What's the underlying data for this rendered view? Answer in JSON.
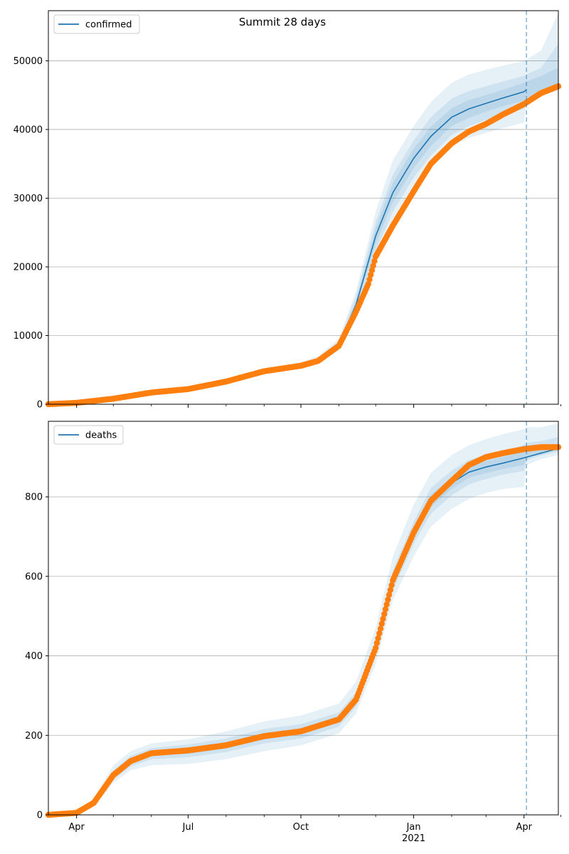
{
  "figure": {
    "title": "Summit 28 days"
  },
  "colors": {
    "model_line": "#1f77b4",
    "observed_points": "#ff7f0e",
    "band": "#1f77b4",
    "grid": "#b0b0b0",
    "axes": "#000000"
  },
  "x_axis": {
    "ticks": [
      {
        "label": "Apr",
        "date": "2020-04-01"
      },
      {
        "label": "Jul",
        "date": "2020-07-01"
      },
      {
        "label": "Oct",
        "date": "2020-10-01"
      },
      {
        "label": "Jan",
        "date": "2021-01-01"
      },
      {
        "label": "Apr",
        "date": "2021-04-01"
      }
    ],
    "year_label": "2021",
    "minor_tick_dates": [
      "2020-05-01",
      "2020-06-01",
      "2020-08-01",
      "2020-09-01",
      "2020-11-01",
      "2020-12-01",
      "2021-02-01",
      "2021-03-01",
      "2021-05-01"
    ],
    "range": [
      "2020-03-09",
      "2021-04-29"
    ],
    "forecast_start": "2021-04-03"
  },
  "chart_data": [
    {
      "type": "line",
      "legend": {
        "label": "confirmed",
        "position": "top-left"
      },
      "ylim": [
        0,
        57300
      ],
      "grid": "horizontal",
      "yticks": [
        {
          "label": "0",
          "value": 0
        },
        {
          "label": "10000",
          "value": 10000
        },
        {
          "label": "20000",
          "value": 20000
        },
        {
          "label": "30000",
          "value": 30000
        },
        {
          "label": "40000",
          "value": 40000
        },
        {
          "label": "50000",
          "value": 50000
        }
      ],
      "model": {
        "dates": [
          "2020-03-09",
          "2020-04-01",
          "2020-05-01",
          "2020-06-01",
          "2020-07-01",
          "2020-08-01",
          "2020-09-01",
          "2020-10-01",
          "2020-10-15",
          "2020-11-01",
          "2020-11-15",
          "2020-12-01",
          "2020-12-15",
          "2021-01-01",
          "2021-01-15",
          "2021-02-01",
          "2021-02-15",
          "2021-03-01",
          "2021-03-15",
          "2021-04-01",
          "2021-04-03"
        ],
        "values": [
          0,
          300,
          900,
          1700,
          2200,
          3300,
          4800,
          5600,
          6400,
          8700,
          14500,
          24500,
          30800,
          35800,
          39000,
          41800,
          43000,
          43800,
          44600,
          45500,
          45800
        ]
      },
      "observed": {
        "dates": [
          "2020-03-09",
          "2020-04-01",
          "2020-05-01",
          "2020-06-01",
          "2020-07-01",
          "2020-08-01",
          "2020-09-01",
          "2020-10-01",
          "2020-10-15",
          "2020-11-01",
          "2020-11-15",
          "2020-11-25",
          "2020-12-01",
          "2020-12-15",
          "2021-01-01",
          "2021-01-15",
          "2021-02-01",
          "2021-02-15",
          "2021-03-01",
          "2021-03-15",
          "2021-04-01",
          "2021-04-15",
          "2021-04-29"
        ],
        "values": [
          0,
          200,
          800,
          1700,
          2200,
          3300,
          4800,
          5600,
          6300,
          8500,
          13500,
          17500,
          21500,
          26000,
          31000,
          35000,
          38000,
          39700,
          40800,
          42200,
          43700,
          45300,
          46300
        ]
      },
      "bands": [
        {
          "dates": [
            "2020-03-09",
            "2020-04-01",
            "2020-05-01",
            "2020-06-01",
            "2020-07-01",
            "2020-08-01",
            "2020-09-01",
            "2020-10-01",
            "2020-10-15",
            "2020-11-01",
            "2020-11-15",
            "2020-12-01",
            "2020-12-15",
            "2021-01-01",
            "2021-01-15",
            "2021-02-01",
            "2021-02-15",
            "2021-03-01",
            "2021-03-15",
            "2021-04-01",
            "2021-04-03",
            "2021-04-15",
            "2021-04-29"
          ],
          "lower": [
            0,
            250,
            800,
            1500,
            2000,
            3000,
            4400,
            5200,
            5900,
            7900,
            12500,
            21000,
            26500,
            31500,
            34500,
            37500,
            38800,
            39500,
            40200,
            41000,
            44200,
            45100,
            45600
          ],
          "upper": [
            0,
            350,
            1000,
            1900,
            2450,
            3600,
            5200,
            6100,
            7000,
            9500,
            16500,
            28000,
            35500,
            40500,
            44000,
            46800,
            48000,
            48700,
            49300,
            50000,
            50200,
            51500,
            57000
          ]
        },
        {
          "dates": [
            "2020-03-09",
            "2020-04-01",
            "2020-05-01",
            "2020-06-01",
            "2020-07-01",
            "2020-08-01",
            "2020-09-01",
            "2020-10-01",
            "2020-10-15",
            "2020-11-01",
            "2020-11-15",
            "2020-12-01",
            "2020-12-15",
            "2021-01-01",
            "2021-01-15",
            "2021-02-01",
            "2021-02-15",
            "2021-03-01",
            "2021-03-15",
            "2021-04-01",
            "2021-04-03",
            "2021-04-15",
            "2021-04-29"
          ],
          "lower": [
            0,
            260,
            830,
            1580,
            2080,
            3120,
            4550,
            5350,
            6100,
            8200,
            13300,
            22300,
            28000,
            33000,
            36200,
            39200,
            40500,
            41400,
            42200,
            43000,
            44400,
            45300,
            46000
          ],
          "upper": [
            0,
            340,
            970,
            1820,
            2350,
            3480,
            5050,
            5900,
            6750,
            9200,
            15700,
            26500,
            33400,
            38400,
            41800,
            44500,
            45600,
            46300,
            47000,
            47800,
            48000,
            49000,
            52500
          ]
        },
        {
          "dates": [
            "2020-03-09",
            "2020-04-01",
            "2020-05-01",
            "2020-06-01",
            "2020-07-01",
            "2020-08-01",
            "2020-09-01",
            "2020-10-01",
            "2020-10-15",
            "2020-11-01",
            "2020-11-15",
            "2020-12-01",
            "2020-12-15",
            "2021-01-01",
            "2021-01-15",
            "2021-02-01",
            "2021-02-15",
            "2021-03-01",
            "2021-03-15",
            "2021-04-01",
            "2021-04-03",
            "2021-04-15",
            "2021-04-29"
          ],
          "lower": [
            0,
            280,
            860,
            1640,
            2140,
            3200,
            4680,
            5470,
            6250,
            8450,
            14000,
            23400,
            29400,
            34400,
            37600,
            40500,
            41700,
            42600,
            43400,
            44200,
            44600,
            45500,
            46300
          ],
          "upper": [
            0,
            320,
            940,
            1760,
            2260,
            3400,
            4920,
            5730,
            6550,
            8950,
            15000,
            25600,
            32200,
            37200,
            40400,
            43100,
            44300,
            45000,
            45800,
            46800,
            47000,
            47800,
            49000
          ]
        }
      ]
    },
    {
      "type": "line",
      "legend": {
        "label": "deaths",
        "position": "top-left"
      },
      "ylim": [
        0,
        990
      ],
      "grid": "horizontal",
      "yticks": [
        {
          "label": "0",
          "value": 0
        },
        {
          "label": "200",
          "value": 200
        },
        {
          "label": "400",
          "value": 400
        },
        {
          "label": "600",
          "value": 600
        },
        {
          "label": "800",
          "value": 800
        }
      ],
      "model": {
        "dates": [
          "2020-03-09",
          "2020-04-01",
          "2020-04-15",
          "2020-05-01",
          "2020-05-15",
          "2020-06-01",
          "2020-07-01",
          "2020-08-01",
          "2020-09-01",
          "2020-10-01",
          "2020-11-01",
          "2020-11-15",
          "2020-12-01",
          "2020-12-15",
          "2021-01-01",
          "2021-01-15",
          "2021-02-01",
          "2021-02-15",
          "2021-03-01",
          "2021-03-15",
          "2021-04-01",
          "2021-04-15",
          "2021-04-29"
        ],
        "values": [
          0,
          5,
          30,
          100,
          135,
          155,
          162,
          175,
          198,
          210,
          240,
          290,
          420,
          590,
          710,
          790,
          835,
          862,
          875,
          885,
          898,
          910,
          922
        ]
      },
      "observed": {
        "dates": [
          "2020-03-09",
          "2020-04-01",
          "2020-04-15",
          "2020-05-01",
          "2020-05-15",
          "2020-06-01",
          "2020-07-01",
          "2020-08-01",
          "2020-09-01",
          "2020-10-01",
          "2020-11-01",
          "2020-11-15",
          "2020-12-01",
          "2020-12-15",
          "2021-01-01",
          "2021-01-15",
          "2021-02-01",
          "2021-02-15",
          "2021-03-01",
          "2021-03-15",
          "2021-04-01",
          "2021-04-15",
          "2021-04-29"
        ],
        "values": [
          0,
          5,
          30,
          100,
          135,
          155,
          162,
          175,
          198,
          210,
          240,
          290,
          420,
          590,
          710,
          790,
          840,
          880,
          900,
          910,
          920,
          925,
          925
        ]
      },
      "bands": [
        {
          "dates": [
            "2020-03-09",
            "2020-04-01",
            "2020-04-15",
            "2020-05-01",
            "2020-05-15",
            "2020-06-01",
            "2020-07-01",
            "2020-08-01",
            "2020-09-01",
            "2020-10-01",
            "2020-11-01",
            "2020-11-15",
            "2020-12-01",
            "2020-12-15",
            "2021-01-01",
            "2021-01-15",
            "2021-02-01",
            "2021-02-15",
            "2021-03-01",
            "2021-03-15",
            "2021-04-01",
            "2021-04-03",
            "2021-04-15",
            "2021-04-29"
          ],
          "lower": [
            0,
            3,
            22,
            80,
            112,
            125,
            128,
            140,
            160,
            175,
            205,
            255,
            380,
            540,
            650,
            725,
            770,
            795,
            810,
            820,
            825,
            880,
            895,
            905
          ],
          "upper": [
            0,
            8,
            40,
            125,
            160,
            180,
            190,
            210,
            235,
            250,
            280,
            335,
            470,
            650,
            780,
            860,
            905,
            930,
            945,
            958,
            970,
            975,
            975,
            985
          ]
        },
        {
          "dates": [
            "2020-03-09",
            "2020-04-01",
            "2020-04-15",
            "2020-05-01",
            "2020-05-15",
            "2020-06-01",
            "2020-07-01",
            "2020-08-01",
            "2020-09-01",
            "2020-10-01",
            "2020-11-01",
            "2020-11-15",
            "2020-12-01",
            "2020-12-15",
            "2021-01-01",
            "2021-01-15",
            "2021-02-01",
            "2021-02-15",
            "2021-03-01",
            "2021-03-15",
            "2021-04-01",
            "2021-04-03",
            "2021-04-15",
            "2021-04-29"
          ],
          "lower": [
            0,
            4,
            25,
            88,
            122,
            140,
            145,
            158,
            180,
            192,
            222,
            272,
            400,
            565,
            682,
            758,
            804,
            831,
            845,
            856,
            865,
            892,
            904,
            914
          ],
          "upper": [
            0,
            6,
            35,
            112,
            148,
            168,
            177,
            192,
            216,
            228,
            258,
            308,
            440,
            615,
            738,
            822,
            866,
            893,
            905,
            914,
            931,
            936,
            940,
            950
          ]
        },
        {
          "dates": [
            "2020-03-09",
            "2020-04-01",
            "2020-04-15",
            "2020-05-01",
            "2020-05-15",
            "2020-06-01",
            "2020-07-01",
            "2020-08-01",
            "2020-09-01",
            "2020-10-01",
            "2020-11-01",
            "2020-11-15",
            "2020-12-01",
            "2020-12-15",
            "2021-01-01",
            "2021-01-15",
            "2021-02-01",
            "2021-02-15",
            "2021-03-01",
            "2021-03-15",
            "2021-04-01",
            "2021-04-03",
            "2021-04-15",
            "2021-04-29"
          ],
          "lower": [
            0,
            4.5,
            27,
            94,
            129,
            148,
            154,
            167,
            190,
            203,
            232,
            282,
            410,
            578,
            697,
            775,
            820,
            848,
            860,
            870,
            880,
            898,
            908,
            918
          ],
          "upper": [
            0,
            5.5,
            33,
            106,
            141,
            162,
            170,
            183,
            206,
            218,
            248,
            298,
            430,
            602,
            723,
            805,
            850,
            876,
            890,
            900,
            914,
            916,
            918,
            928
          ]
        }
      ]
    }
  ]
}
